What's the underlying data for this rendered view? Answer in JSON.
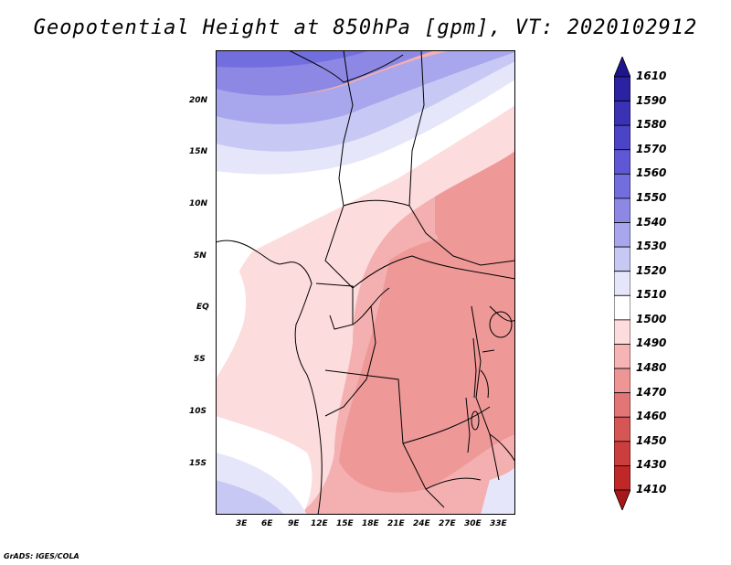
{
  "title": "Geopotential Height at 850hPa [gpm], VT: 2020102912",
  "map": {
    "variable": "Geopotential Height",
    "level": "850hPa",
    "units": "gpm",
    "valid_time": "2020102912",
    "region": "Central Africa"
  },
  "axes": {
    "lat_labels": [
      "20N",
      "15N",
      "10N",
      "5N",
      "EQ",
      "5S",
      "10S",
      "15S"
    ],
    "lon_labels": [
      "3E",
      "6E",
      "9E",
      "12E",
      "15E",
      "18E",
      "21E",
      "24E",
      "27E",
      "30E",
      "33E"
    ]
  },
  "colorbar": {
    "levels": [
      "1610",
      "1590",
      "1580",
      "1570",
      "1560",
      "1550",
      "1540",
      "1530",
      "1520",
      "1510",
      "1500",
      "1490",
      "1480",
      "1470",
      "1460",
      "1450",
      "1430",
      "1410"
    ],
    "colors": [
      "#1e148c",
      "#2a22a0",
      "#3a32b4",
      "#4c44c6",
      "#5e58d4",
      "#726ede",
      "#8c88e4",
      "#a8a6ec",
      "#c8c8f4",
      "#e6e6fa",
      "#ffffff",
      "#fcdcdc",
      "#f6b4b4",
      "#ee9696",
      "#e27676",
      "#d65656",
      "#cc3e3e",
      "#c02828",
      "#a81818"
    ]
  },
  "credit": "GrADS: IGES/COLA"
}
